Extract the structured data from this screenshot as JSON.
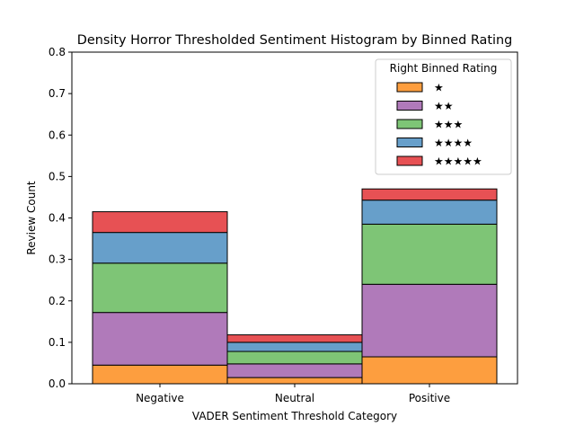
{
  "chart_data": {
    "type": "bar",
    "stacked": true,
    "title": "Density Horror Thresholded Sentiment Histogram by Binned Rating",
    "xlabel": "VADER Sentiment Threshold Category",
    "ylabel": "Review Count",
    "categories": [
      "Negative",
      "Neutral",
      "Positive"
    ],
    "ylim": [
      0,
      0.8
    ],
    "yticks": [
      "0.0",
      "0.1",
      "0.2",
      "0.3",
      "0.4",
      "0.5",
      "0.6",
      "0.7",
      "0.8"
    ],
    "legend_title": "Right Binned Rating",
    "legend_position": "upper right",
    "grid": false,
    "series": [
      {
        "name": "★",
        "color": "#fd9e3f",
        "values": [
          0.045,
          0.015,
          0.065
        ]
      },
      {
        "name": "★★",
        "color": "#b07aba",
        "values": [
          0.127,
          0.033,
          0.175
        ]
      },
      {
        "name": "★★★",
        "color": "#7ec576",
        "values": [
          0.119,
          0.03,
          0.145
        ]
      },
      {
        "name": "★★★★",
        "color": "#679fca",
        "values": [
          0.074,
          0.022,
          0.058
        ]
      },
      {
        "name": "★★★★★",
        "color": "#e75154",
        "values": [
          0.05,
          0.018,
          0.027
        ]
      }
    ]
  }
}
